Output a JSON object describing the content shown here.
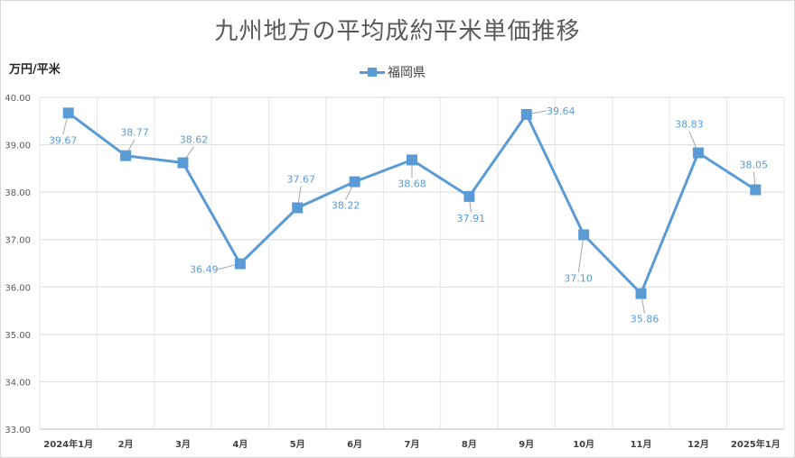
{
  "chart_data": {
    "type": "line",
    "title": "九州地方の平均成約平米単価推移",
    "ylabel": "万円/平米",
    "xlabel": "",
    "categories": [
      "2024年1月",
      "2月",
      "3月",
      "4月",
      "5月",
      "6月",
      "7月",
      "8月",
      "9月",
      "10月",
      "11月",
      "12月",
      "2025年1月"
    ],
    "series": [
      {
        "name": "福岡県",
        "color": "#5B9BD5",
        "values": [
          39.67,
          38.77,
          38.62,
          36.49,
          37.67,
          38.22,
          38.68,
          37.91,
          39.64,
          37.1,
          35.86,
          38.83,
          38.05
        ],
        "labels": [
          "39.67",
          "38.77",
          "38.62",
          "36.49",
          "37.67",
          "38.22",
          "38.68",
          "37.91",
          "39.64",
          "37.10",
          "35.86",
          "38.83",
          "38.05"
        ]
      }
    ],
    "ylim": [
      33,
      40
    ],
    "yticks": [
      "33.00",
      "34.00",
      "35.00",
      "36.00",
      "37.00",
      "38.00",
      "39.00",
      "40.00"
    ],
    "grid": true,
    "legend_position": "top-center",
    "marker": "square"
  }
}
